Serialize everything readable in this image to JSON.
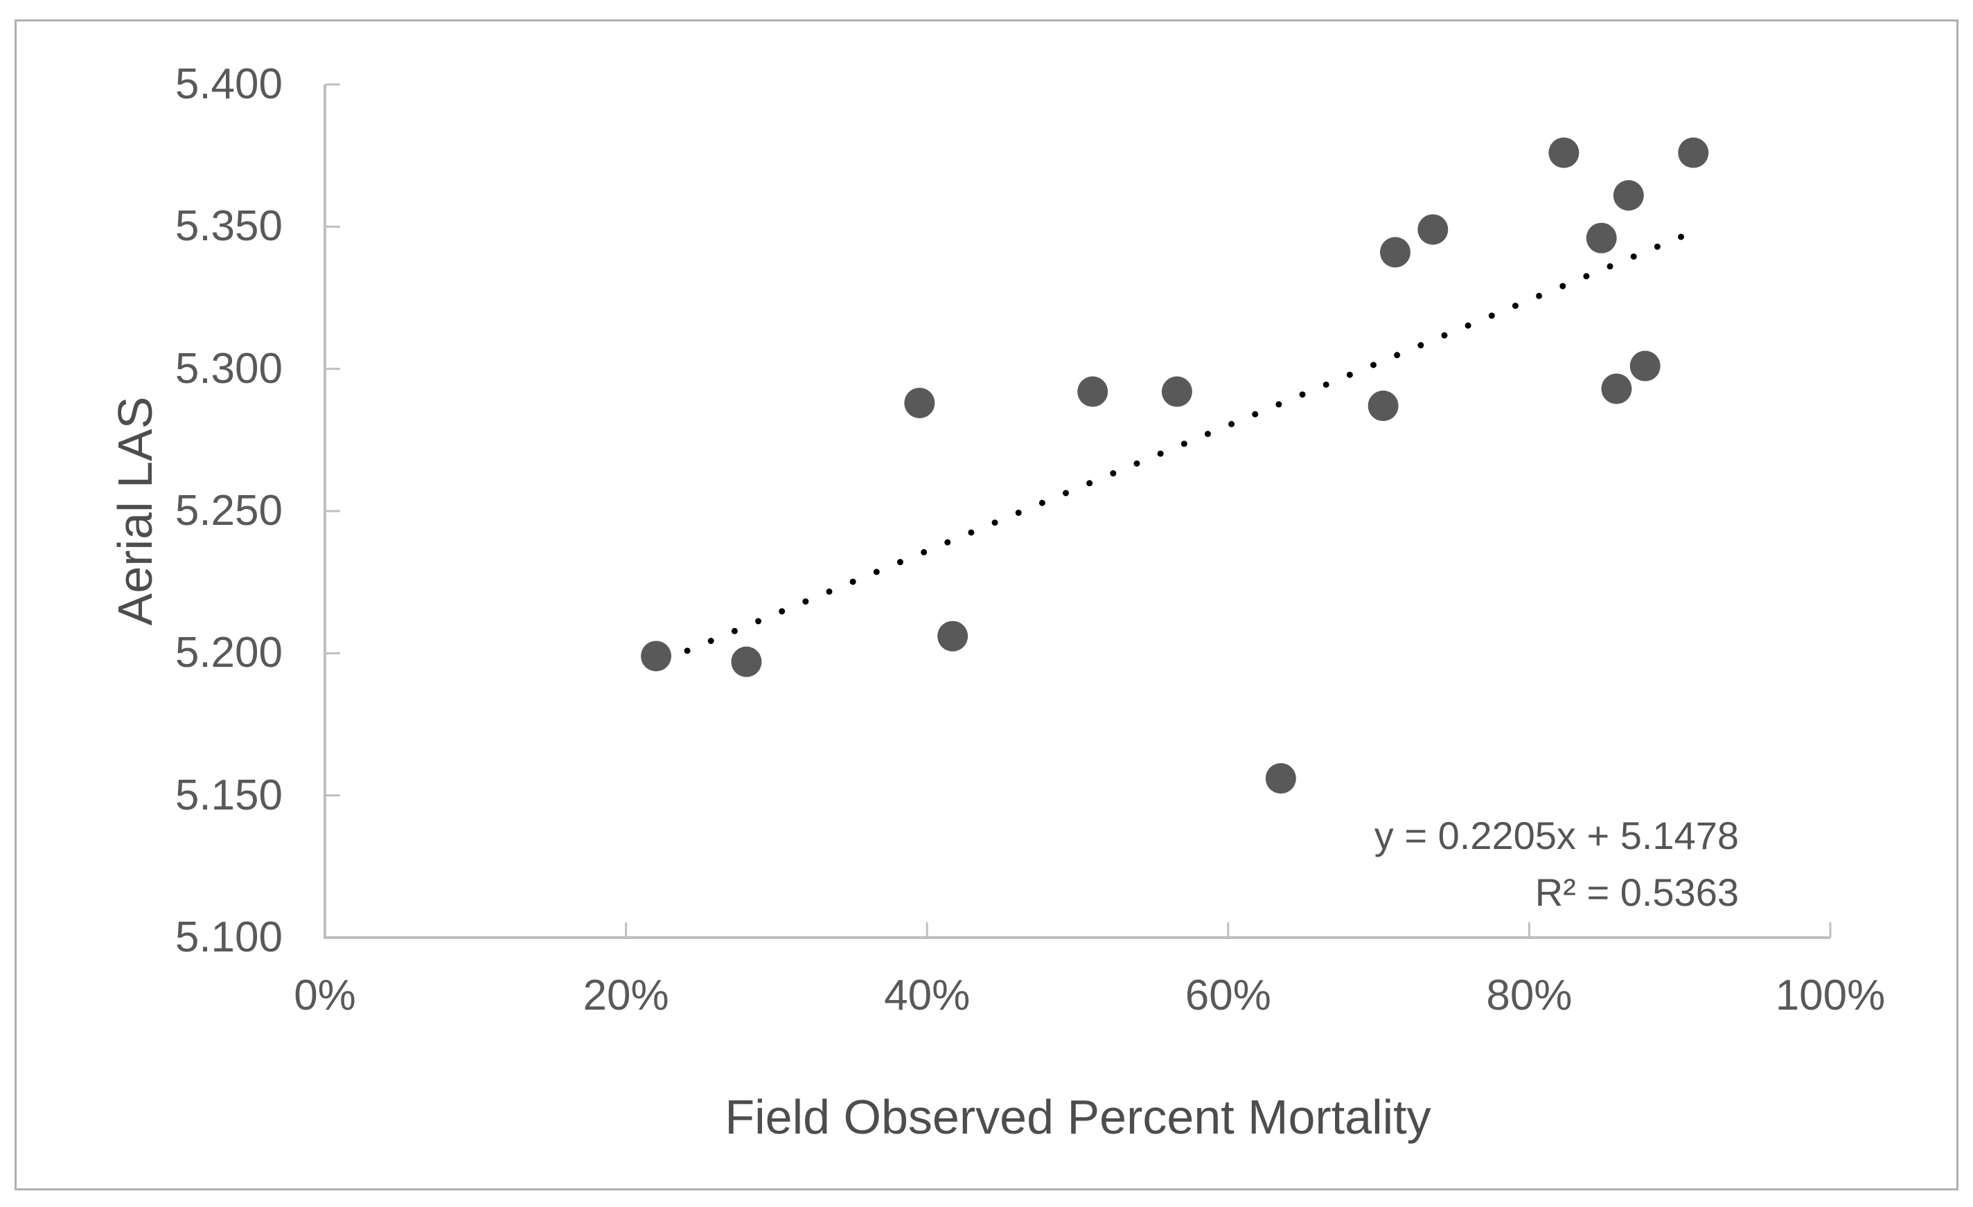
{
  "colors": {
    "point": "#595959",
    "trendline": "#000000",
    "axis_line": "#bfbfbf",
    "tick_label": "#595959",
    "axis_title": "#4d4d4d",
    "equation_text": "#555555",
    "frame_border": "#b0b0b0",
    "background": "#ffffff"
  },
  "chart_data": {
    "type": "scatter",
    "title": "",
    "xlabel": "Field Observed Percent Mortality",
    "ylabel": "Aerial LAS",
    "grid": false,
    "legend": "none",
    "x_axis": {
      "min": 0,
      "max": 1,
      "tick_step": 0.2,
      "tick_labels": [
        "0%",
        "20%",
        "40%",
        "60%",
        "80%",
        "100%"
      ]
    },
    "y_axis": {
      "min": 5.1,
      "max": 5.4,
      "tick_step": 0.05,
      "tick_labels": [
        "5.100",
        "5.150",
        "5.200",
        "5.250",
        "5.300",
        "5.350",
        "5.400"
      ]
    },
    "points": [
      {
        "x": 0.22,
        "y": 5.199
      },
      {
        "x": 0.28,
        "y": 5.197
      },
      {
        "x": 0.395,
        "y": 5.288
      },
      {
        "x": 0.417,
        "y": 5.206
      },
      {
        "x": 0.51,
        "y": 5.292
      },
      {
        "x": 0.566,
        "y": 5.292
      },
      {
        "x": 0.635,
        "y": 5.156
      },
      {
        "x": 0.703,
        "y": 5.287
      },
      {
        "x": 0.711,
        "y": 5.341
      },
      {
        "x": 0.736,
        "y": 5.349
      },
      {
        "x": 0.823,
        "y": 5.376
      },
      {
        "x": 0.848,
        "y": 5.346
      },
      {
        "x": 0.858,
        "y": 5.293
      },
      {
        "x": 0.866,
        "y": 5.361
      },
      {
        "x": 0.877,
        "y": 5.301
      },
      {
        "x": 0.909,
        "y": 5.376
      }
    ],
    "trendline": {
      "style": "dotted",
      "slope": 0.2205,
      "intercept": 5.1478,
      "x_start": 0.225,
      "x_end": 0.908,
      "equation_label": "y = 0.2205x + 5.1478",
      "r_squared_label": "R² = 0.5363"
    }
  }
}
